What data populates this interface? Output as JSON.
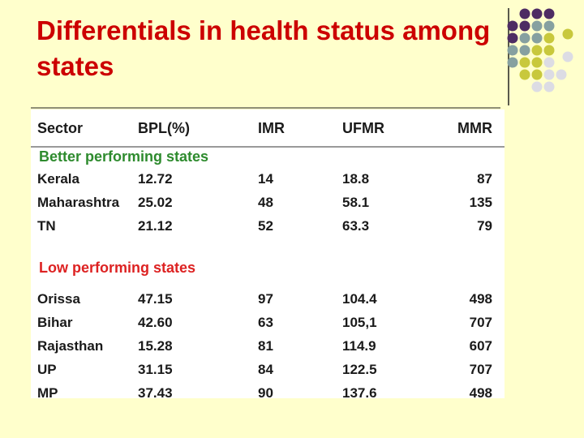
{
  "title": "Differentials in health status among states",
  "table": {
    "header": [
      "Sector",
      "BPL(%)",
      "IMR",
      "UFMR",
      "MMR"
    ],
    "sections": [
      {
        "label": "Better performing states",
        "rows": [
          [
            "Kerala",
            "12.72",
            "14",
            "18.8",
            "87"
          ],
          [
            "Maharashtra",
            "25.02",
            "48",
            "58.1",
            "135"
          ],
          [
            "TN",
            "21.12",
            "52",
            "63.3",
            "79"
          ]
        ]
      },
      {
        "label": "Low performing states",
        "rows": [
          [
            "Orissa",
            "47.15",
            "97",
            "104.4",
            "498"
          ],
          [
            "Bihar",
            "42.60",
            "63",
            "105,1",
            "707"
          ],
          [
            "Rajasthan",
            "15.28",
            "81",
            "114.9",
            "607"
          ],
          [
            "UP",
            "31.15",
            "84",
            "122.5",
            "707"
          ],
          [
            "MP",
            "37.43",
            "90",
            "137.6",
            "498"
          ]
        ]
      }
    ]
  }
}
